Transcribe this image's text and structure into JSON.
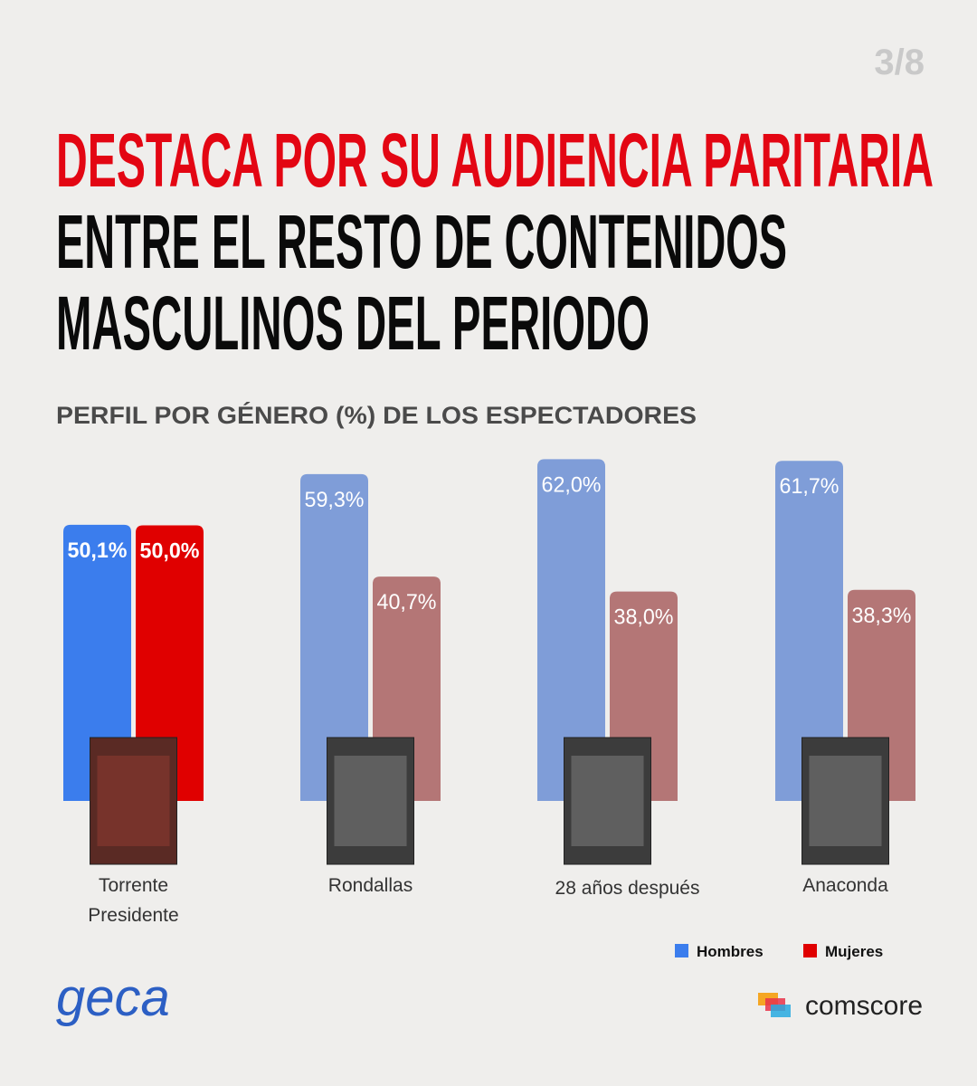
{
  "page_number": "3/8",
  "chart_data": {
    "type": "bar",
    "title_lines": [
      "DESTACA POR SU AUDIENCIA PARITARIA",
      "ENTRE EL RESTO DE CONTENIDOS",
      "MASCULINOS DEL PERIODO"
    ],
    "subtitle": "PERFIL POR GÉNERO (%) DE LOS ESPECTADORES",
    "categories": [
      "Torrente Presidente",
      "Rondallas",
      "28 años después",
      "Anaconda"
    ],
    "series": [
      {
        "name": "Hombres",
        "color": "#3b7ded",
        "colors": [
          "#3b7ded",
          "#7f9dd8",
          "#7f9dd8",
          "#7f9dd8"
        ],
        "values": [
          50.1,
          59.3,
          62.0,
          61.7
        ],
        "value_labels": [
          "50,1%",
          "59,3%",
          "62,0%",
          "61,7%"
        ]
      },
      {
        "name": "Mujeres",
        "color": "#e00000",
        "colors": [
          "#e00000",
          "#b47676",
          "#b47676",
          "#b47676"
        ],
        "values": [
          50.0,
          40.7,
          38.0,
          38.3
        ],
        "value_labels": [
          "50,0%",
          "40,7%",
          "38,0%",
          "38,3%"
        ]
      }
    ],
    "legend": "bottom-right"
  },
  "logos": {
    "left": "geca",
    "right": "comscore"
  }
}
